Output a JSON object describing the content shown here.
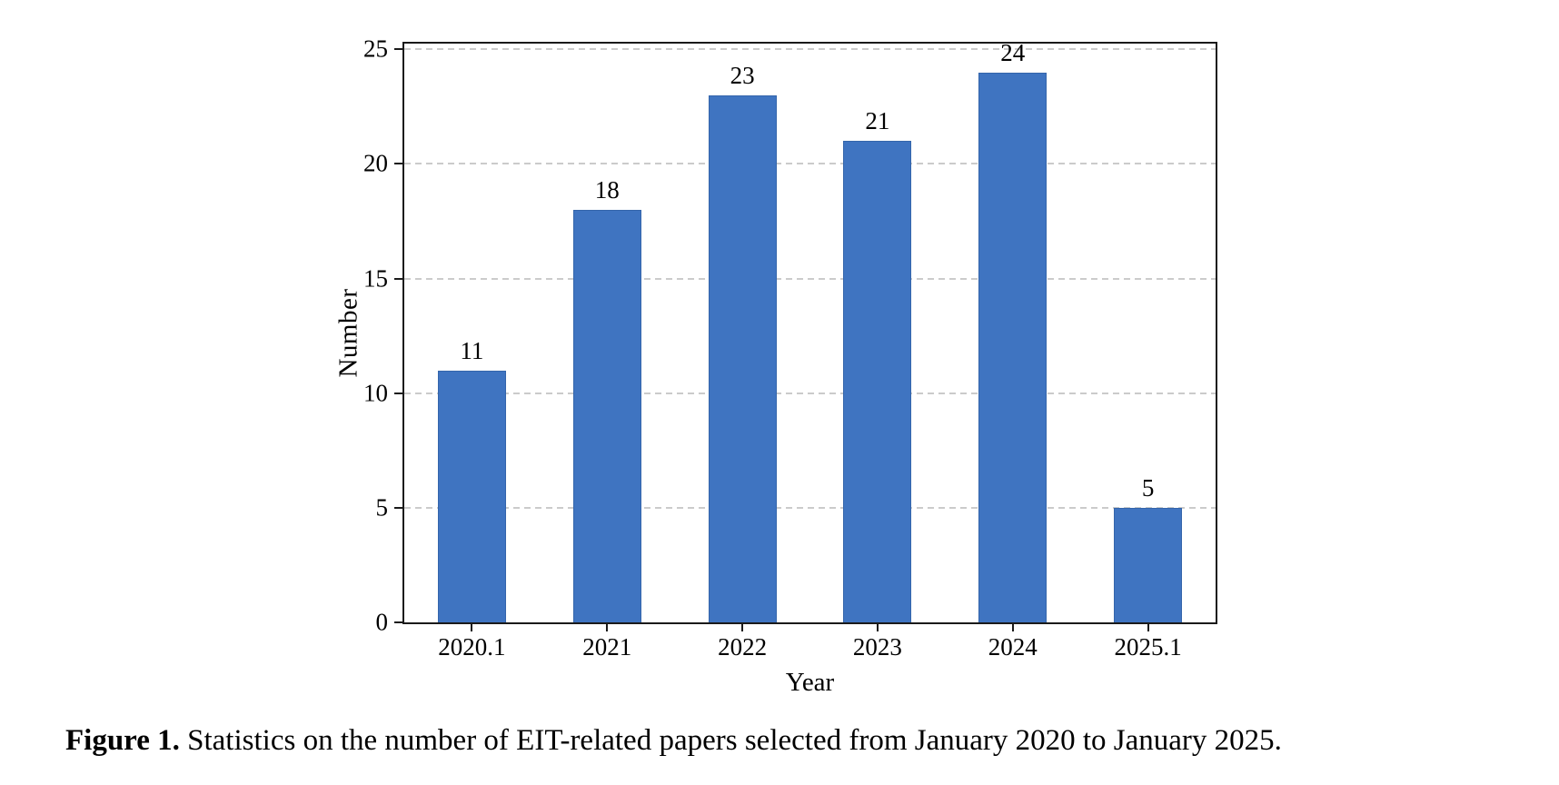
{
  "figure": {
    "caption_label": "Figure 1.",
    "caption_text": " Statistics on the number of EIT-related papers selected from January 2020 to January 2025."
  },
  "chart_data": {
    "type": "bar",
    "title": "",
    "categories": [
      "2020.1",
      "2021",
      "2022",
      "2023",
      "2024",
      "2025.1"
    ],
    "values": [
      11,
      18,
      23,
      21,
      24,
      5
    ],
    "bar_labels": [
      "11",
      "18",
      "23",
      "21",
      "24",
      "5"
    ],
    "xlabel": "Year",
    "ylabel": "Number",
    "ylim": [
      0,
      25
    ],
    "yticks": [
      0,
      5,
      10,
      15,
      20,
      25
    ],
    "grid": "horizontal-dashed",
    "legend": "none",
    "bar_color": "#3F74C1",
    "grid_color": "#cbcbcb",
    "spine_color": "#1a1a1a",
    "text_color": "#000000"
  }
}
